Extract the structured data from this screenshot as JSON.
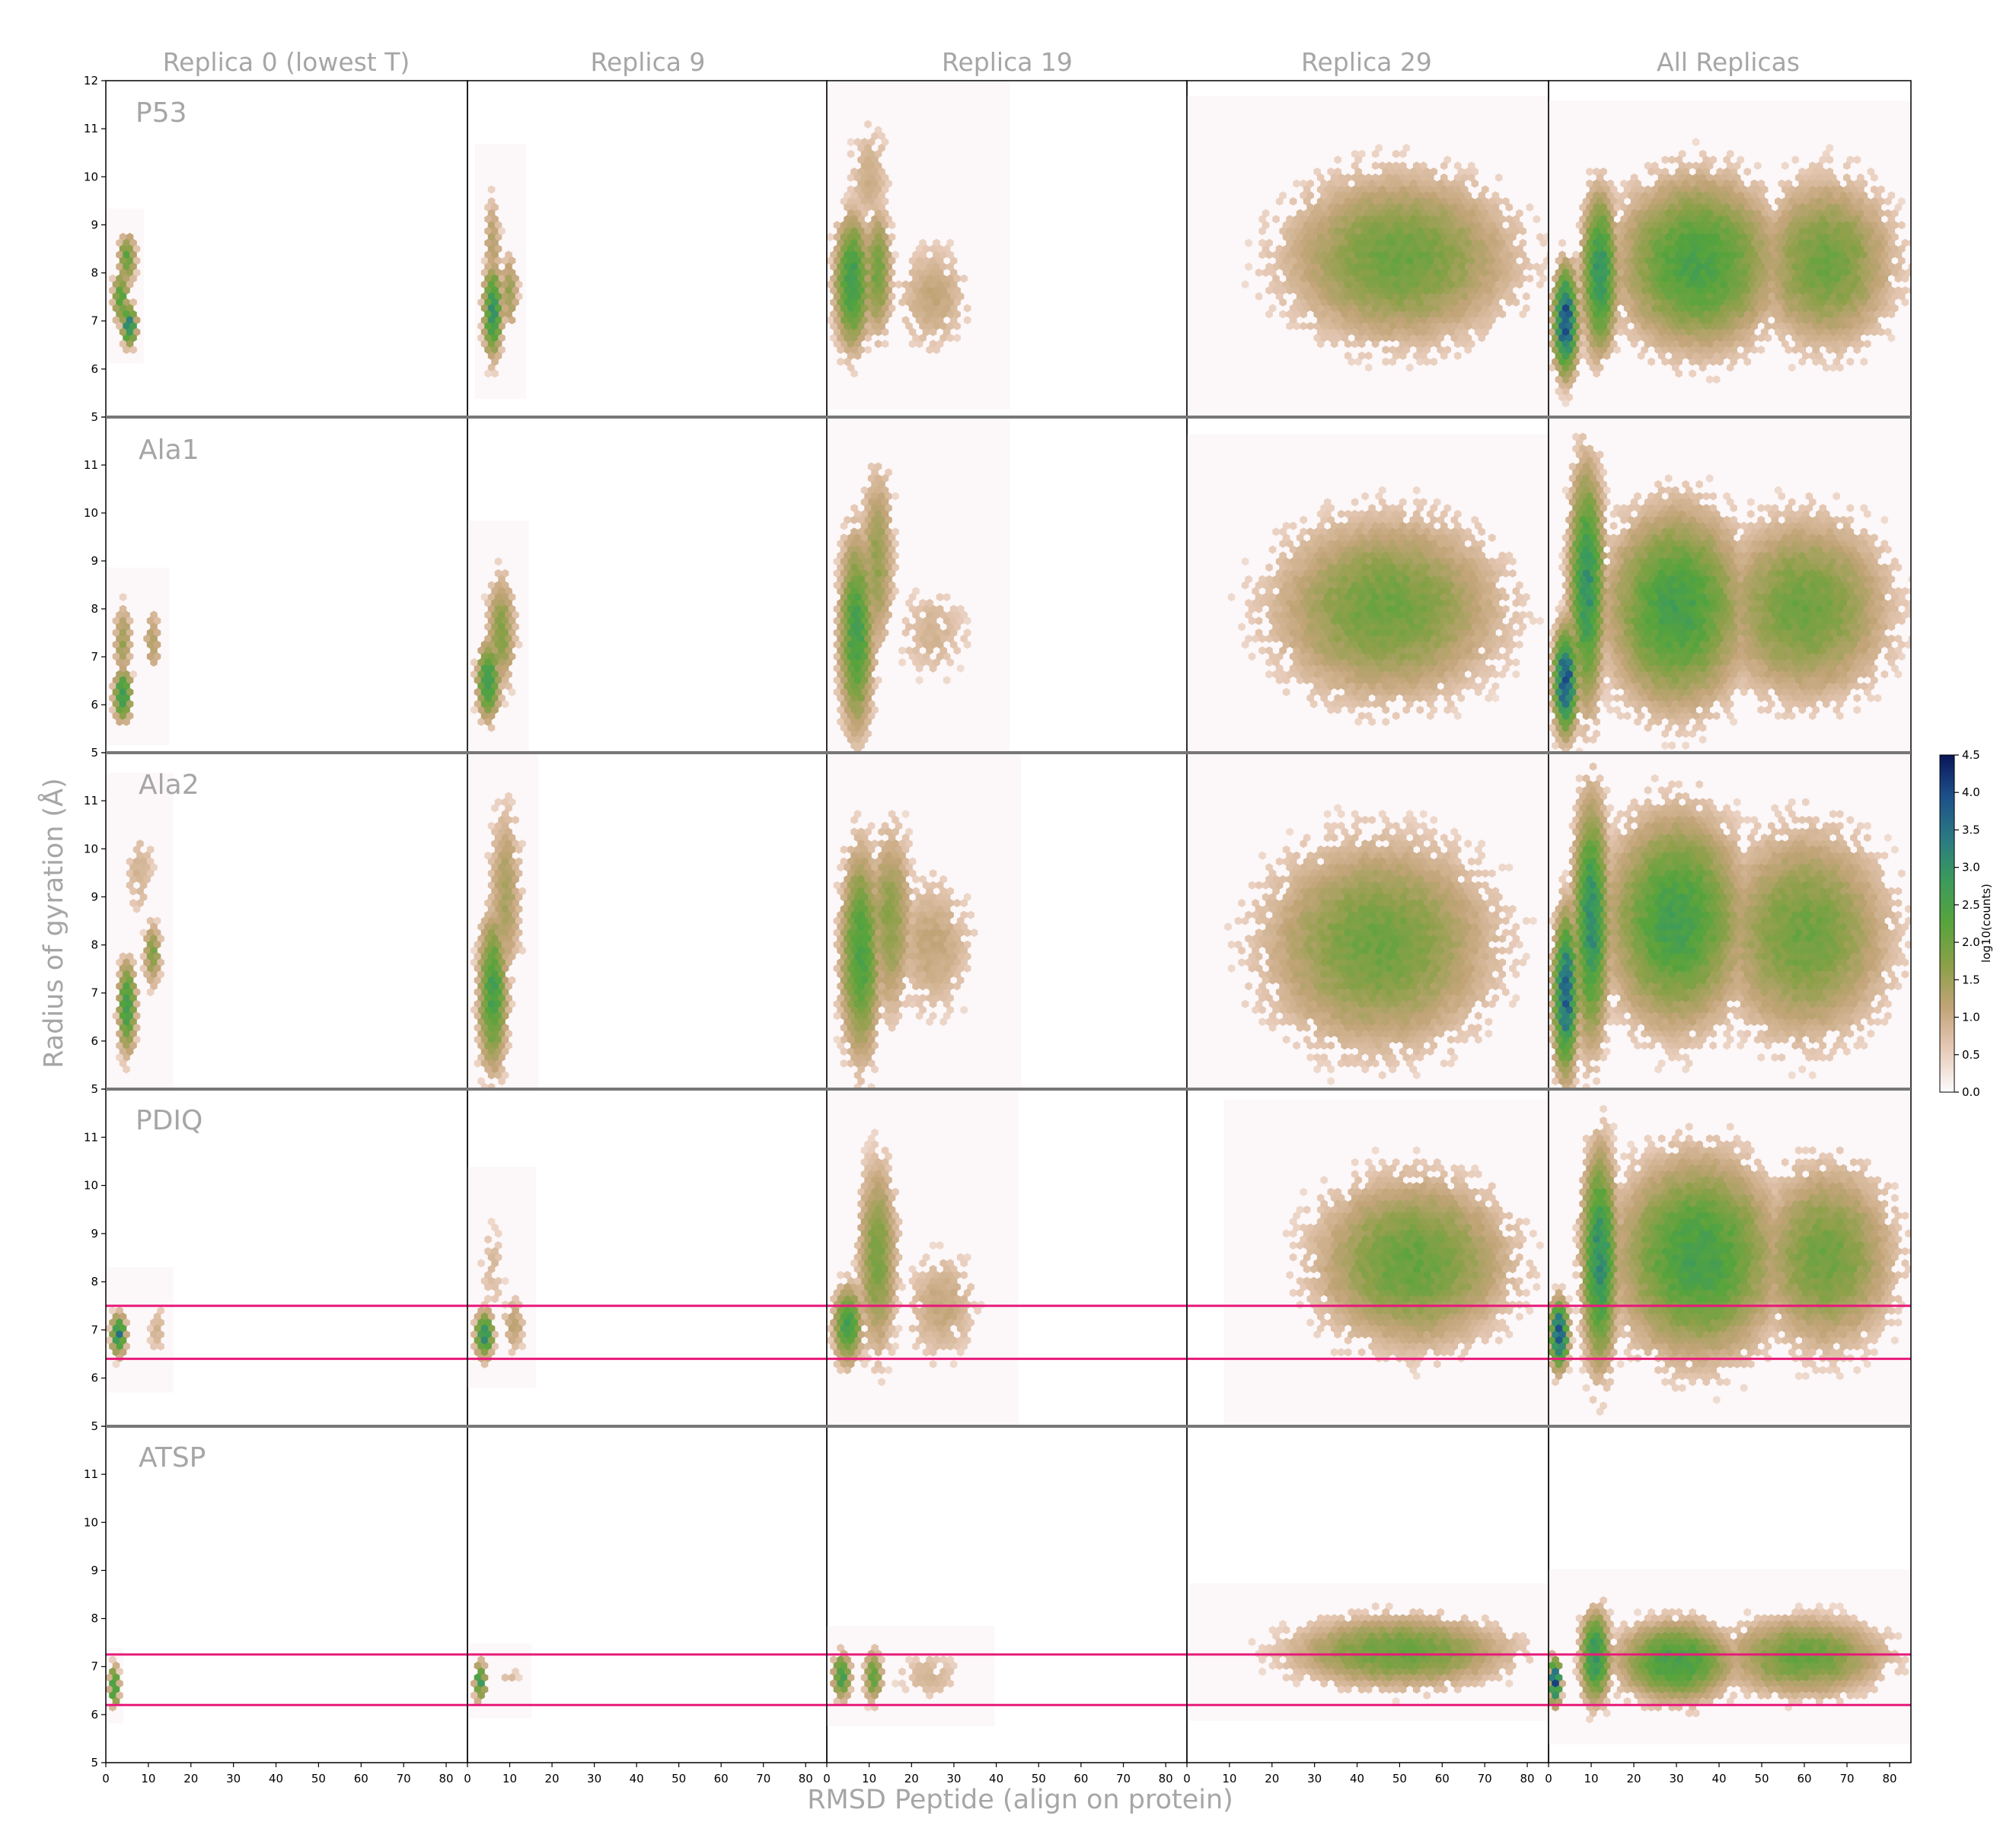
{
  "chart_data": {
    "type": "heatmap",
    "subtype": "hexbin grid (5 rows x 5 columns)",
    "column_titles": [
      "Replica 0 (lowest T)",
      "Replica 9",
      "Replica 19",
      "Replica 29",
      "All Replicas"
    ],
    "row_labels": [
      "P53",
      "Ala1",
      "Ala2",
      "PDIQ",
      "ATSP"
    ],
    "xlabel": "RMSD Peptide (align on protein)",
    "ylabel": "Radius of gyration (Å)",
    "xlim": [
      0,
      85
    ],
    "ylim": [
      5,
      12
    ],
    "x_ticks": [
      0,
      10,
      20,
      30,
      40,
      50,
      60,
      70,
      80
    ],
    "x_tick_labels": [
      "0",
      "10",
      "20",
      "30",
      "40",
      "50",
      "60",
      "70",
      "80"
    ],
    "y_ticks": [
      5,
      6,
      7,
      8,
      9,
      10,
      11,
      12
    ],
    "y_tick_labels": [
      "5",
      "6",
      "7",
      "8",
      "9",
      "10",
      "11",
      "12"
    ],
    "colorbar": {
      "label": "log10(counts)",
      "range": [
        0.0,
        4.5
      ],
      "ticks": [
        0.0,
        0.5,
        1.0,
        1.5,
        2.0,
        2.5,
        3.0,
        3.5,
        4.0,
        4.5
      ],
      "tick_labels": [
        "0.0",
        "0.5",
        "1.0",
        "1.5",
        "2.0",
        "2.5",
        "3.0",
        "3.5",
        "4.0",
        "4.5"
      ],
      "colormap": "gist_earth_r"
    },
    "reference_lines": [
      {
        "row": "PDIQ",
        "y_values": [
          6.4,
          7.5
        ],
        "color": "#e8197a"
      },
      {
        "row": "ATSP",
        "y_values": [
          6.2,
          7.25
        ],
        "color": "#e8197a"
      }
    ],
    "clusters": [
      [
        [
          {
            "x": 5.5,
            "y": 6.9,
            "sx": 1.2,
            "sy": 0.3,
            "p": 3.4
          },
          {
            "x": 3.5,
            "y": 7.5,
            "sx": 1.3,
            "sy": 0.4,
            "p": 2.4
          },
          {
            "x": 5,
            "y": 8.3,
            "sx": 1.5,
            "sy": 0.4,
            "p": 2.2
          }
        ],
        [
          {
            "x": 6,
            "y": 7.2,
            "sx": 1.6,
            "sy": 0.7,
            "p": 3.0
          },
          {
            "x": 10,
            "y": 7.6,
            "sx": 1.5,
            "sy": 0.6,
            "p": 1.6
          },
          {
            "x": 6,
            "y": 8.6,
            "sx": 1.5,
            "sy": 0.8,
            "p": 1.3
          }
        ],
        [
          {
            "x": 6,
            "y": 7.8,
            "sx": 3,
            "sy": 1.0,
            "p": 2.8
          },
          {
            "x": 12,
            "y": 8.0,
            "sx": 2.5,
            "sy": 1.0,
            "p": 2.0
          },
          {
            "x": 25,
            "y": 7.5,
            "sx": 7,
            "sy": 0.9,
            "p": 1.1
          },
          {
            "x": 10,
            "y": 10,
            "sx": 4,
            "sy": 0.9,
            "p": 1.0
          }
        ],
        [
          {
            "x": 50,
            "y": 8.3,
            "sx": 20,
            "sy": 1.3,
            "p": 2.0
          }
        ],
        [
          {
            "x": 4,
            "y": 7.0,
            "sx": 2,
            "sy": 0.8,
            "p": 4.0
          },
          {
            "x": 12,
            "y": 8.0,
            "sx": 3,
            "sy": 1.2,
            "p": 3.0
          },
          {
            "x": 35,
            "y": 8.2,
            "sx": 14,
            "sy": 1.3,
            "p": 2.5
          },
          {
            "x": 65,
            "y": 8.2,
            "sx": 12,
            "sy": 1.3,
            "p": 2.0
          }
        ]
      ],
      [
        [
          {
            "x": 4,
            "y": 6.2,
            "sx": 1.5,
            "sy": 0.4,
            "p": 3.0
          },
          {
            "x": 4,
            "y": 7.3,
            "sx": 1.5,
            "sy": 0.6,
            "p": 1.6
          },
          {
            "x": 11,
            "y": 7.3,
            "sx": 1.5,
            "sy": 0.6,
            "p": 1.3
          }
        ],
        [
          {
            "x": 5,
            "y": 6.5,
            "sx": 2,
            "sy": 0.6,
            "p": 2.8
          },
          {
            "x": 8,
            "y": 7.5,
            "sx": 2.5,
            "sy": 0.9,
            "p": 1.8
          }
        ],
        [
          {
            "x": 7,
            "y": 7.5,
            "sx": 3,
            "sy": 1.5,
            "p": 2.6
          },
          {
            "x": 12,
            "y": 9.0,
            "sx": 3,
            "sy": 1.5,
            "p": 1.6
          },
          {
            "x": 25,
            "y": 7.5,
            "sx": 7,
            "sy": 0.8,
            "p": 0.9
          }
        ],
        [
          {
            "x": 47,
            "y": 8.0,
            "sx": 20,
            "sy": 1.4,
            "p": 2.0
          }
        ],
        [
          {
            "x": 4,
            "y": 6.5,
            "sx": 2,
            "sy": 0.8,
            "p": 4.0
          },
          {
            "x": 9,
            "y": 8.5,
            "sx": 3,
            "sy": 1.8,
            "p": 3.0
          },
          {
            "x": 30,
            "y": 8.0,
            "sx": 12,
            "sy": 1.5,
            "p": 2.6
          },
          {
            "x": 60,
            "y": 8.0,
            "sx": 15,
            "sy": 1.4,
            "p": 2.0
          }
        ]
      ],
      [
        [
          {
            "x": 5,
            "y": 6.7,
            "sx": 1.5,
            "sy": 0.7,
            "p": 2.8
          },
          {
            "x": 11,
            "y": 7.8,
            "sx": 1.5,
            "sy": 0.5,
            "p": 1.8
          },
          {
            "x": 8,
            "y": 9.5,
            "sx": 3,
            "sy": 0.8,
            "p": 0.9
          }
        ],
        [
          {
            "x": 6,
            "y": 7.0,
            "sx": 2.5,
            "sy": 1.2,
            "p": 2.6
          },
          {
            "x": 9,
            "y": 9.0,
            "sx": 3,
            "sy": 1.5,
            "p": 1.4
          }
        ],
        [
          {
            "x": 8,
            "y": 7.8,
            "sx": 3.5,
            "sy": 1.6,
            "p": 2.5
          },
          {
            "x": 15,
            "y": 8.5,
            "sx": 4,
            "sy": 1.5,
            "p": 1.7
          },
          {
            "x": 25,
            "y": 8.0,
            "sx": 8,
            "sy": 1.2,
            "p": 1.1
          }
        ],
        [
          {
            "x": 45,
            "y": 8.0,
            "sx": 20,
            "sy": 1.6,
            "p": 2.0
          }
        ],
        [
          {
            "x": 4,
            "y": 7.0,
            "sx": 2,
            "sy": 1.2,
            "p": 3.8
          },
          {
            "x": 10,
            "y": 8.5,
            "sx": 3,
            "sy": 1.8,
            "p": 3.1
          },
          {
            "x": 30,
            "y": 8.5,
            "sx": 12,
            "sy": 1.6,
            "p": 2.6
          },
          {
            "x": 60,
            "y": 8.2,
            "sx": 15,
            "sy": 1.6,
            "p": 2.0
          }
        ]
      ],
      [
        [
          {
            "x": 3,
            "y": 6.9,
            "sx": 1.2,
            "sy": 0.3,
            "p": 3.4
          },
          {
            "x": 12,
            "y": 7.0,
            "sx": 1.5,
            "sy": 0.5,
            "p": 0.9
          }
        ],
        [
          {
            "x": 4,
            "y": 6.9,
            "sx": 1.5,
            "sy": 0.35,
            "p": 3.2
          },
          {
            "x": 11,
            "y": 7.1,
            "sx": 2,
            "sy": 0.5,
            "p": 1.2
          },
          {
            "x": 6,
            "y": 8.3,
            "sx": 2.5,
            "sy": 0.8,
            "p": 0.8
          }
        ],
        [
          {
            "x": 5,
            "y": 7.1,
            "sx": 2.5,
            "sy": 0.6,
            "p": 2.6
          },
          {
            "x": 12,
            "y": 8.5,
            "sx": 3.5,
            "sy": 1.5,
            "p": 1.9
          },
          {
            "x": 27,
            "y": 7.5,
            "sx": 7,
            "sy": 0.9,
            "p": 1.1
          }
        ],
        [
          {
            "x": 53,
            "y": 8.4,
            "sx": 17,
            "sy": 1.3,
            "p": 2.1
          }
        ],
        [
          {
            "x": 2.5,
            "y": 6.9,
            "sx": 1.5,
            "sy": 0.5,
            "p": 4.2
          },
          {
            "x": 12,
            "y": 8.5,
            "sx": 3,
            "sy": 1.6,
            "p": 3.1
          },
          {
            "x": 35,
            "y": 8.5,
            "sx": 14,
            "sy": 1.5,
            "p": 2.6
          },
          {
            "x": 65,
            "y": 8.5,
            "sx": 12,
            "sy": 1.4,
            "p": 2.0
          }
        ]
      ],
      [
        [
          {
            "x": 2,
            "y": 6.6,
            "sx": 0.8,
            "sy": 0.3,
            "p": 3.0
          }
        ],
        [
          {
            "x": 3,
            "y": 6.7,
            "sx": 1,
            "sy": 0.3,
            "p": 2.8
          },
          {
            "x": 10,
            "y": 6.7,
            "sx": 2,
            "sy": 0.3,
            "p": 0.8
          }
        ],
        [
          {
            "x": 3.5,
            "y": 6.8,
            "sx": 1.5,
            "sy": 0.35,
            "p": 2.7
          },
          {
            "x": 11,
            "y": 6.8,
            "sx": 1.5,
            "sy": 0.4,
            "p": 2.2
          },
          {
            "x": 24,
            "y": 6.8,
            "sx": 6,
            "sy": 0.4,
            "p": 0.9
          }
        ],
        [
          {
            "x": 50,
            "y": 7.3,
            "sx": 19,
            "sy": 0.55,
            "p": 2.1
          }
        ],
        [
          {
            "x": 1.5,
            "y": 6.7,
            "sx": 1,
            "sy": 0.35,
            "p": 4.1
          },
          {
            "x": 11,
            "y": 7.2,
            "sx": 2.5,
            "sy": 0.7,
            "p": 3.0
          },
          {
            "x": 30,
            "y": 7.1,
            "sx": 10,
            "sy": 0.6,
            "p": 2.6
          },
          {
            "x": 60,
            "y": 7.2,
            "sx": 14,
            "sy": 0.6,
            "p": 2.1
          }
        ]
      ]
    ]
  }
}
